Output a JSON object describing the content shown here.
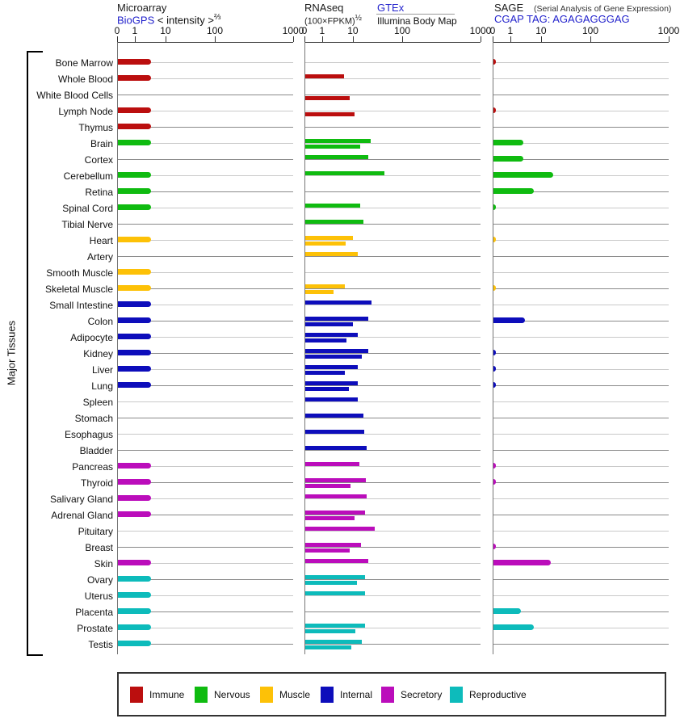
{
  "header": {
    "microarray": {
      "title": "Microarray",
      "link": "BioGPS",
      "scale_label": "< intensity >",
      "scale_sup": "⅔"
    },
    "rnaseq": {
      "title": "RNAseq",
      "scale_label": "(100×FPKM)",
      "scale_sup": "½",
      "link": "GTEx",
      "secondary": "Illumina Body Map"
    },
    "sage": {
      "title": "SAGE",
      "note": "(Serial Analysis of Gene Expression)",
      "link": "CGAP",
      "tag": "TAG: AGAGAGGGAG"
    }
  },
  "sidebar_label": "Major Tissues",
  "legend": [
    {
      "label": "Immune",
      "color": "#bb0e0e"
    },
    {
      "label": "Nervous",
      "color": "#0fbb10"
    },
    {
      "label": "Muscle",
      "color": "#fdc107"
    },
    {
      "label": "Internal",
      "color": "#0d0dbb"
    },
    {
      "label": "Secretory",
      "color": "#bb0dbb"
    },
    {
      "label": "Reproductive",
      "color": "#0dbbbb"
    }
  ],
  "chart_data": {
    "type": "bar",
    "orientation": "horizontal",
    "panels": [
      "Microarray",
      "RNAseq",
      "SAGE"
    ],
    "rnaseq_series": [
      "GTEx",
      "Illumina Body Map"
    ],
    "axis_ticks": [
      "0",
      "1",
      "10",
      "100",
      "1000"
    ],
    "tick_offsets_pct": [
      0,
      10,
      27.5,
      55.5,
      100
    ],
    "x_scale_note": "nonlinear power scale 0-1000; bar values given as percent of axis length",
    "group_colors": {
      "immune": "#bb0e0e",
      "nervous": "#0fbb10",
      "muscle": "#fdc107",
      "internal": "#0d0dbb",
      "secretory": "#bb0dbb",
      "reproductive": "#0dbbbb"
    },
    "gridline_light": "#c9c9c9",
    "gridline_dark": "#8a8a8a",
    "tissues": [
      {
        "name": "Bone Marrow",
        "group": "immune",
        "microarray_pct": 19,
        "rnaseq_gtex_pct": null,
        "rnaseq_illumina_pct": null,
        "sage_pct": 1.4
      },
      {
        "name": "Whole Blood",
        "group": "immune",
        "microarray_pct": 19,
        "rnaseq_gtex_pct": 22,
        "rnaseq_illumina_pct": null,
        "sage_pct": null
      },
      {
        "name": "White Blood Cells",
        "group": "immune",
        "microarray_pct": null,
        "rnaseq_gtex_pct": null,
        "rnaseq_illumina_pct": 25,
        "sage_pct": null
      },
      {
        "name": "Lymph Node",
        "group": "immune",
        "microarray_pct": 19,
        "rnaseq_gtex_pct": null,
        "rnaseq_illumina_pct": 28,
        "sage_pct": 1.4
      },
      {
        "name": "Thymus",
        "group": "immune",
        "microarray_pct": 19,
        "rnaseq_gtex_pct": null,
        "rnaseq_illumina_pct": null,
        "sage_pct": null
      },
      {
        "name": "Brain",
        "group": "nervous",
        "microarray_pct": 19,
        "rnaseq_gtex_pct": 37,
        "rnaseq_illumina_pct": 31,
        "sage_pct": 17
      },
      {
        "name": "Cortex",
        "group": "nervous",
        "microarray_pct": null,
        "rnaseq_gtex_pct": 36,
        "rnaseq_illumina_pct": null,
        "sage_pct": 17
      },
      {
        "name": "Cerebellum",
        "group": "nervous",
        "microarray_pct": 19,
        "rnaseq_gtex_pct": 45,
        "rnaseq_illumina_pct": null,
        "sage_pct": 34
      },
      {
        "name": "Retina",
        "group": "nervous",
        "microarray_pct": 19,
        "rnaseq_gtex_pct": null,
        "rnaseq_illumina_pct": null,
        "sage_pct": 23
      },
      {
        "name": "Spinal Cord",
        "group": "nervous",
        "microarray_pct": 19,
        "rnaseq_gtex_pct": 31,
        "rnaseq_illumina_pct": null,
        "sage_pct": 1.4
      },
      {
        "name": "Tibial Nerve",
        "group": "nervous",
        "microarray_pct": null,
        "rnaseq_gtex_pct": 33,
        "rnaseq_illumina_pct": null,
        "sage_pct": null
      },
      {
        "name": "Heart",
        "group": "muscle",
        "microarray_pct": 19,
        "rnaseq_gtex_pct": 27,
        "rnaseq_illumina_pct": 23,
        "sage_pct": 1.4
      },
      {
        "name": "Artery",
        "group": "muscle",
        "microarray_pct": null,
        "rnaseq_gtex_pct": 30,
        "rnaseq_illumina_pct": null,
        "sage_pct": null
      },
      {
        "name": "Smooth Muscle",
        "group": "muscle",
        "microarray_pct": 19,
        "rnaseq_gtex_pct": null,
        "rnaseq_illumina_pct": null,
        "sage_pct": null
      },
      {
        "name": "Skeletal Muscle",
        "group": "muscle",
        "microarray_pct": 19,
        "rnaseq_gtex_pct": 22.5,
        "rnaseq_illumina_pct": 16,
        "sage_pct": 1.4
      },
      {
        "name": "Small Intestine",
        "group": "internal",
        "microarray_pct": 19,
        "rnaseq_gtex_pct": 37.6,
        "rnaseq_illumina_pct": null,
        "sage_pct": null
      },
      {
        "name": "Colon",
        "group": "internal",
        "microarray_pct": 19,
        "rnaseq_gtex_pct": 36,
        "rnaseq_illumina_pct": 27,
        "sage_pct": 18
      },
      {
        "name": "Adipocyte",
        "group": "internal",
        "microarray_pct": 19,
        "rnaseq_gtex_pct": 30,
        "rnaseq_illumina_pct": 23.4,
        "sage_pct": null
      },
      {
        "name": "Kidney",
        "group": "internal",
        "microarray_pct": 19,
        "rnaseq_gtex_pct": 36,
        "rnaseq_illumina_pct": 32,
        "sage_pct": 1.4
      },
      {
        "name": "Liver",
        "group": "internal",
        "microarray_pct": 19,
        "rnaseq_gtex_pct": 30,
        "rnaseq_illumina_pct": 22.5,
        "sage_pct": 1.4
      },
      {
        "name": "Lung",
        "group": "internal",
        "microarray_pct": 19,
        "rnaseq_gtex_pct": 30,
        "rnaseq_illumina_pct": 24.8,
        "sage_pct": 1.4
      },
      {
        "name": "Spleen",
        "group": "internal",
        "microarray_pct": null,
        "rnaseq_gtex_pct": 30,
        "rnaseq_illumina_pct": null,
        "sage_pct": null
      },
      {
        "name": "Stomach",
        "group": "internal",
        "microarray_pct": null,
        "rnaseq_gtex_pct": 33,
        "rnaseq_illumina_pct": null,
        "sage_pct": null
      },
      {
        "name": "Esophagus",
        "group": "internal",
        "microarray_pct": null,
        "rnaseq_gtex_pct": 33.5,
        "rnaseq_illumina_pct": null,
        "sage_pct": null
      },
      {
        "name": "Bladder",
        "group": "internal",
        "microarray_pct": null,
        "rnaseq_gtex_pct": 34.9,
        "rnaseq_illumina_pct": null,
        "sage_pct": null
      },
      {
        "name": "Pancreas",
        "group": "secretory",
        "microarray_pct": 19,
        "rnaseq_gtex_pct": 30.7,
        "rnaseq_illumina_pct": null,
        "sage_pct": 1.4
      },
      {
        "name": "Thyroid",
        "group": "secretory",
        "microarray_pct": 19,
        "rnaseq_gtex_pct": 34.4,
        "rnaseq_illumina_pct": 25.7,
        "sage_pct": 1.4
      },
      {
        "name": "Salivary Gland",
        "group": "secretory",
        "microarray_pct": 19,
        "rnaseq_gtex_pct": 34.9,
        "rnaseq_illumina_pct": null,
        "sage_pct": null
      },
      {
        "name": "Adrenal Gland",
        "group": "secretory",
        "microarray_pct": 19,
        "rnaseq_gtex_pct": 34,
        "rnaseq_illumina_pct": 28,
        "sage_pct": null
      },
      {
        "name": "Pituitary",
        "group": "secretory",
        "microarray_pct": null,
        "rnaseq_gtex_pct": 39.4,
        "rnaseq_illumina_pct": null,
        "sage_pct": null
      },
      {
        "name": "Breast",
        "group": "secretory",
        "microarray_pct": null,
        "rnaseq_gtex_pct": 31.7,
        "rnaseq_illumina_pct": 25.2,
        "sage_pct": 1.4
      },
      {
        "name": "Skin",
        "group": "secretory",
        "microarray_pct": 19,
        "rnaseq_gtex_pct": 36,
        "rnaseq_illumina_pct": null,
        "sage_pct": 32.6
      },
      {
        "name": "Ovary",
        "group": "reproductive",
        "microarray_pct": 19,
        "rnaseq_gtex_pct": 34,
        "rnaseq_illumina_pct": 29.4,
        "sage_pct": null
      },
      {
        "name": "Uterus",
        "group": "reproductive",
        "microarray_pct": 19,
        "rnaseq_gtex_pct": 34,
        "rnaseq_illumina_pct": null,
        "sage_pct": null
      },
      {
        "name": "Placenta",
        "group": "reproductive",
        "microarray_pct": 19,
        "rnaseq_gtex_pct": null,
        "rnaseq_illumina_pct": null,
        "sage_pct": 15.6
      },
      {
        "name": "Prostate",
        "group": "reproductive",
        "microarray_pct": 19,
        "rnaseq_gtex_pct": 34,
        "rnaseq_illumina_pct": 28.4,
        "sage_pct": 23
      },
      {
        "name": "Testis",
        "group": "reproductive",
        "microarray_pct": 19,
        "rnaseq_gtex_pct": 32,
        "rnaseq_illumina_pct": 26,
        "sage_pct": null
      }
    ]
  }
}
